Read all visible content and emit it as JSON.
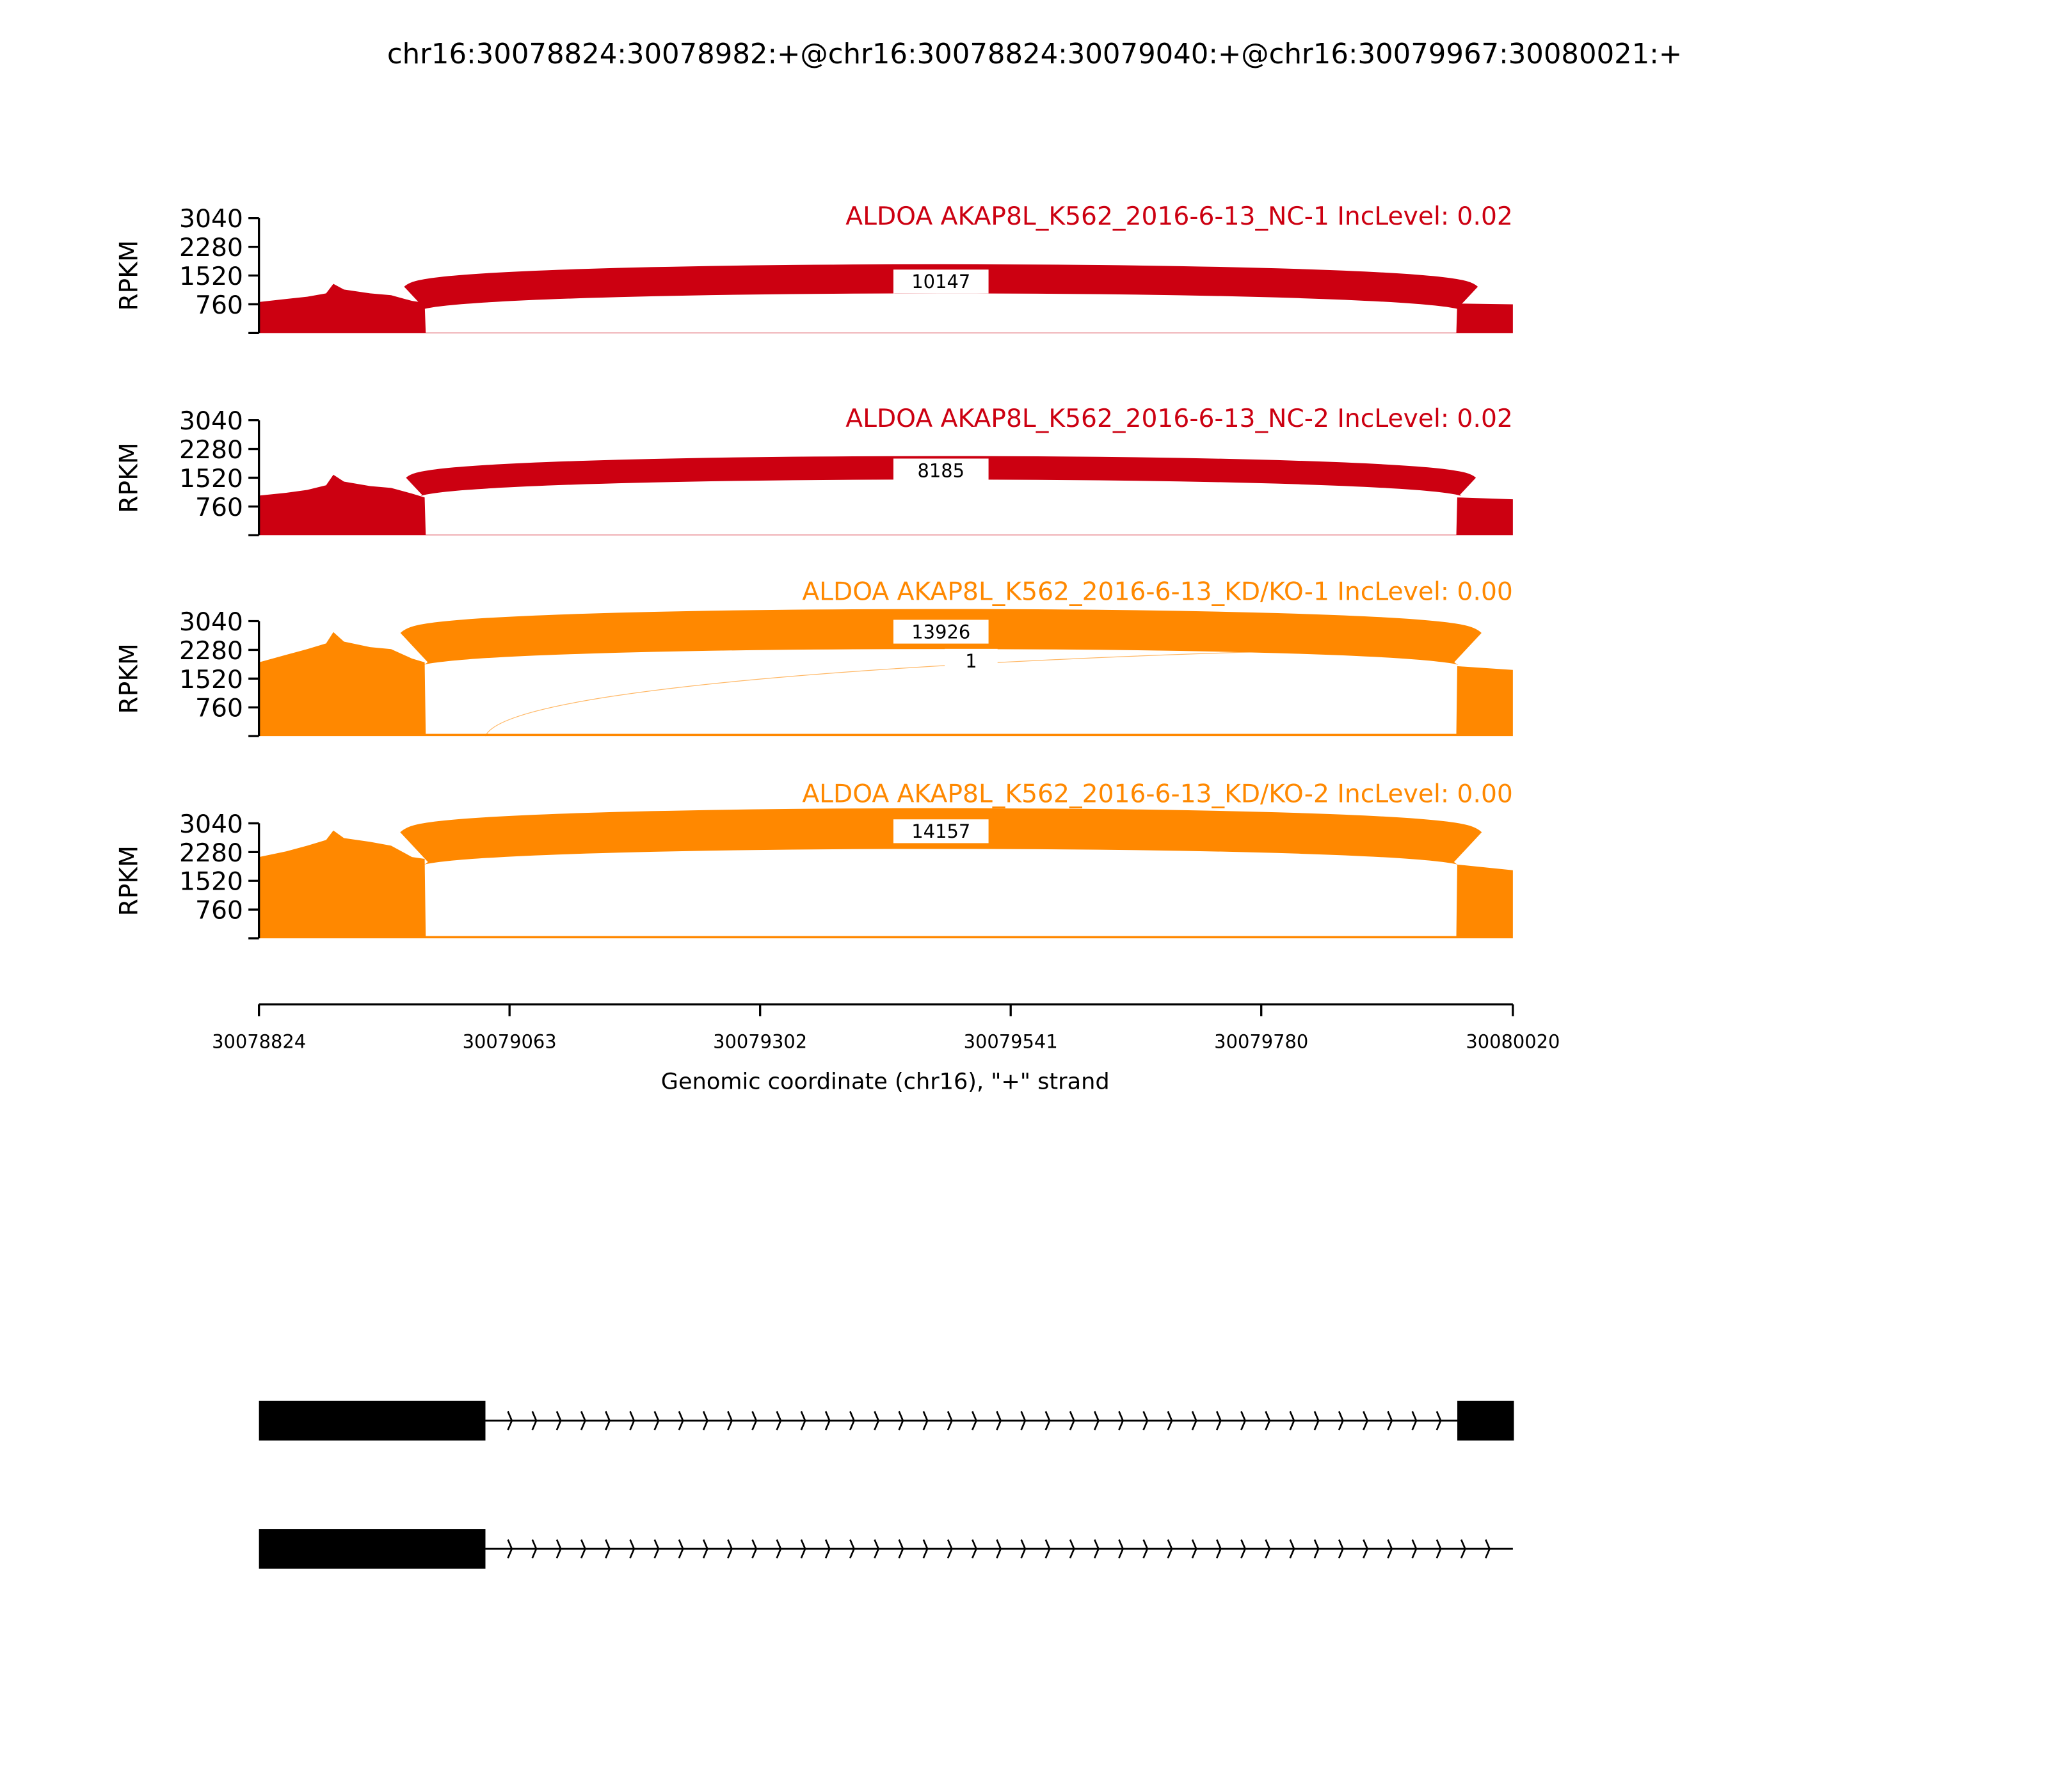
{
  "title": "chr16:30078824:30078982:+@chr16:30078824:30079040:+@chr16:30079967:30080021:+",
  "colors": {
    "nc": "#cc0011",
    "kd": "#ff8800",
    "gene_model": "#000000"
  },
  "chart_data": [
    {
      "type": "area",
      "title": "ALDOA AKAP8L_K562_2016-6-13_NC-1 IncLevel: 0.02",
      "ylabel": "RPKM",
      "ylim": [
        0,
        3040
      ],
      "yticks": [
        "760",
        "1520",
        "2280",
        "3040"
      ],
      "color": "#cc0011",
      "coverage": [
        [
          30078824,
          820
        ],
        [
          30078850,
          900
        ],
        [
          30078870,
          960
        ],
        [
          30078888,
          1050
        ],
        [
          30078895,
          1300
        ],
        [
          30078905,
          1150
        ],
        [
          30078930,
          1050
        ],
        [
          30078950,
          1000
        ],
        [
          30078970,
          850
        ],
        [
          30078982,
          800
        ],
        [
          30078983,
          10
        ],
        [
          30079966,
          10
        ],
        [
          30079967,
          780
        ],
        [
          30080020,
          760
        ]
      ],
      "junctions": [
        {
          "start": 30078982,
          "end": 30079967,
          "count": "10147"
        }
      ]
    },
    {
      "type": "area",
      "title": "ALDOA AKAP8L_K562_2016-6-13_NC-2 IncLevel: 0.02",
      "ylabel": "RPKM",
      "ylim": [
        0,
        3040
      ],
      "yticks": [
        "760",
        "1520",
        "2280",
        "3040"
      ],
      "color": "#cc0011",
      "coverage": [
        [
          30078824,
          1050
        ],
        [
          30078850,
          1120
        ],
        [
          30078870,
          1200
        ],
        [
          30078888,
          1320
        ],
        [
          30078895,
          1600
        ],
        [
          30078905,
          1420
        ],
        [
          30078930,
          1300
        ],
        [
          30078950,
          1250
        ],
        [
          30078970,
          1100
        ],
        [
          30078982,
          1000
        ],
        [
          30078983,
          10
        ],
        [
          30079966,
          10
        ],
        [
          30079967,
          1000
        ],
        [
          30080020,
          950
        ]
      ],
      "junctions": [
        {
          "start": 30078982,
          "end": 30079967,
          "count": "8185"
        }
      ]
    },
    {
      "type": "area",
      "title": "ALDOA AKAP8L_K562_2016-6-13_KD/KO-1 IncLevel: 0.00",
      "ylabel": "RPKM",
      "ylim": [
        0,
        3040
      ],
      "yticks": [
        "760",
        "1520",
        "2280",
        "3040"
      ],
      "color": "#ff8800",
      "coverage": [
        [
          30078824,
          1950
        ],
        [
          30078850,
          2150
        ],
        [
          30078870,
          2300
        ],
        [
          30078888,
          2450
        ],
        [
          30078895,
          2750
        ],
        [
          30078905,
          2500
        ],
        [
          30078930,
          2350
        ],
        [
          30078950,
          2300
        ],
        [
          30078970,
          2050
        ],
        [
          30078982,
          1950
        ],
        [
          30078983,
          60
        ],
        [
          30079966,
          60
        ],
        [
          30079967,
          1850
        ],
        [
          30080020,
          1750
        ]
      ],
      "junctions": [
        {
          "start": 30078982,
          "end": 30079967,
          "count": "13926"
        },
        {
          "start": 30079040,
          "end": 30079967,
          "count": "1"
        }
      ]
    },
    {
      "type": "area",
      "title": "ALDOA AKAP8L_K562_2016-6-13_KD/KO-2 IncLevel: 0.00",
      "ylabel": "RPKM",
      "ylim": [
        0,
        3040
      ],
      "yticks": [
        "760",
        "1520",
        "2280",
        "3040"
      ],
      "color": "#ff8800",
      "coverage": [
        [
          30078824,
          2150
        ],
        [
          30078850,
          2300
        ],
        [
          30078870,
          2450
        ],
        [
          30078888,
          2600
        ],
        [
          30078895,
          2850
        ],
        [
          30078905,
          2650
        ],
        [
          30078930,
          2550
        ],
        [
          30078950,
          2450
        ],
        [
          30078970,
          2150
        ],
        [
          30078982,
          2100
        ],
        [
          30078983,
          60
        ],
        [
          30079966,
          60
        ],
        [
          30079967,
          1950
        ],
        [
          30080020,
          1800
        ]
      ],
      "junctions": [
        {
          "start": 30078982,
          "end": 30079967,
          "count": "14157"
        }
      ]
    }
  ],
  "xaxis": {
    "label": "Genomic coordinate (chr16), \"+\" strand",
    "xlim": [
      30078824,
      30080020
    ],
    "ticks": [
      "30078824",
      "30079063",
      "30079302",
      "30079541",
      "30079780",
      "30080020"
    ]
  },
  "gene_model": {
    "transcripts": [
      {
        "exons": [
          [
            30078824,
            30079040
          ],
          [
            30079967,
            30080021
          ]
        ],
        "end": 30080020,
        "strand": "+"
      },
      {
        "exons": [
          [
            30078824,
            30079040
          ]
        ],
        "end": 30080020,
        "strand": "+"
      }
    ]
  }
}
